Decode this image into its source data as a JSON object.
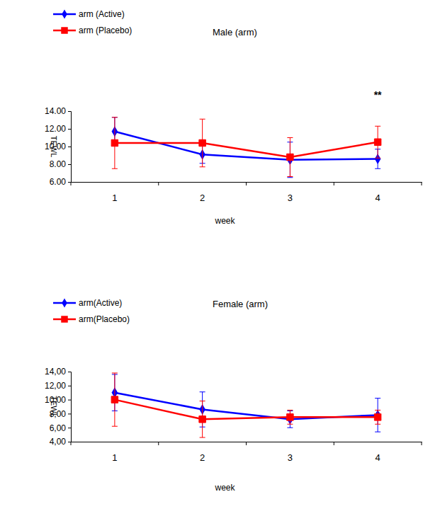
{
  "chart_data": [
    {
      "type": "line",
      "title": "Male (arm)",
      "x_label": "week",
      "y_label": "TEWL",
      "categories": [
        "1",
        "2",
        "3",
        "4"
      ],
      "series": [
        {
          "name": "arm (Active)",
          "color": "#0000ff",
          "marker": "diamond",
          "values": [
            11.7,
            9.1,
            8.5,
            8.6
          ],
          "errors": [
            1.6,
            1.0,
            2.0,
            1.1
          ]
        },
        {
          "name": "arm (Placebo)",
          "color": "#ff0000",
          "marker": "square",
          "values": [
            10.4,
            10.4,
            8.8,
            10.5
          ],
          "errors": [
            2.9,
            2.7,
            2.2,
            1.8
          ]
        }
      ],
      "ylim": [
        6,
        14
      ],
      "yticks": [
        {
          "value": 6,
          "label": "6.00"
        },
        {
          "value": 8,
          "label": "8.00"
        },
        {
          "value": 10,
          "label": "10.00"
        },
        {
          "value": 12,
          "label": "12.00"
        },
        {
          "value": 14,
          "label": "14.00"
        }
      ],
      "legend": "top-left",
      "annotations": [
        {
          "text": "**",
          "x": "4"
        }
      ]
    },
    {
      "type": "line",
      "title": "Female (arm)",
      "x_label": "week",
      "y_label": "TEWL",
      "categories": [
        "1",
        "2",
        "3",
        "4"
      ],
      "series": [
        {
          "name": "arm(Active)",
          "color": "#0000ff",
          "marker": "diamond",
          "values": [
            11.0,
            8.6,
            7.2,
            7.8
          ],
          "errors": [
            2.6,
            2.5,
            1.2,
            2.4
          ]
        },
        {
          "name": "arm(Placebo)",
          "color": "#ff0000",
          "marker": "square",
          "values": [
            10.0,
            7.2,
            7.5,
            7.5
          ],
          "errors": [
            3.8,
            2.6,
            1.0,
            1.0
          ]
        }
      ],
      "ylim": [
        4,
        14
      ],
      "yticks": [
        {
          "value": 4,
          "label": "4,00"
        },
        {
          "value": 6,
          "label": "6,00"
        },
        {
          "value": 8,
          "label": "8,00"
        },
        {
          "value": 10,
          "label": "10,00"
        },
        {
          "value": 12,
          "label": "12,00"
        },
        {
          "value": 14,
          "label": "14,00"
        }
      ],
      "legend": "top-left"
    }
  ]
}
